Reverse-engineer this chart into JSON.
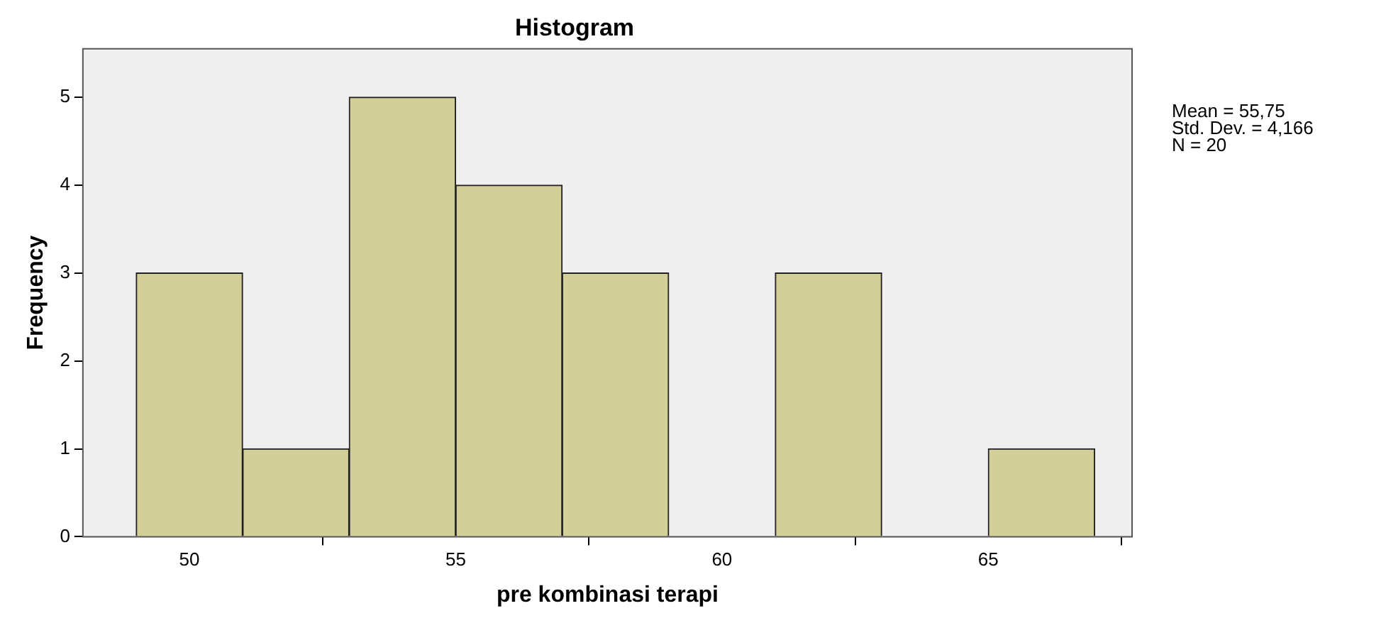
{
  "chart_data": {
    "type": "histogram",
    "title": "Histogram",
    "xlabel": "pre kombinasi terapi",
    "ylabel": "Frequency",
    "bins": [
      49,
      51,
      53,
      55,
      57,
      59,
      61,
      63,
      65,
      67
    ],
    "values": [
      3,
      1,
      5,
      4,
      3,
      0,
      3,
      0,
      1
    ],
    "color": "#d3cf98",
    "xlim": [
      48,
      67.7
    ],
    "xticks": [
      50,
      55,
      60,
      65
    ],
    "ylim": [
      0,
      5.55
    ],
    "yticks": [
      0,
      1,
      2,
      3,
      4,
      5
    ],
    "grid": false,
    "legend": false,
    "annotations": [
      "Mean = 55,75",
      "Std. Dev. = 4,166",
      "N = 20"
    ]
  }
}
